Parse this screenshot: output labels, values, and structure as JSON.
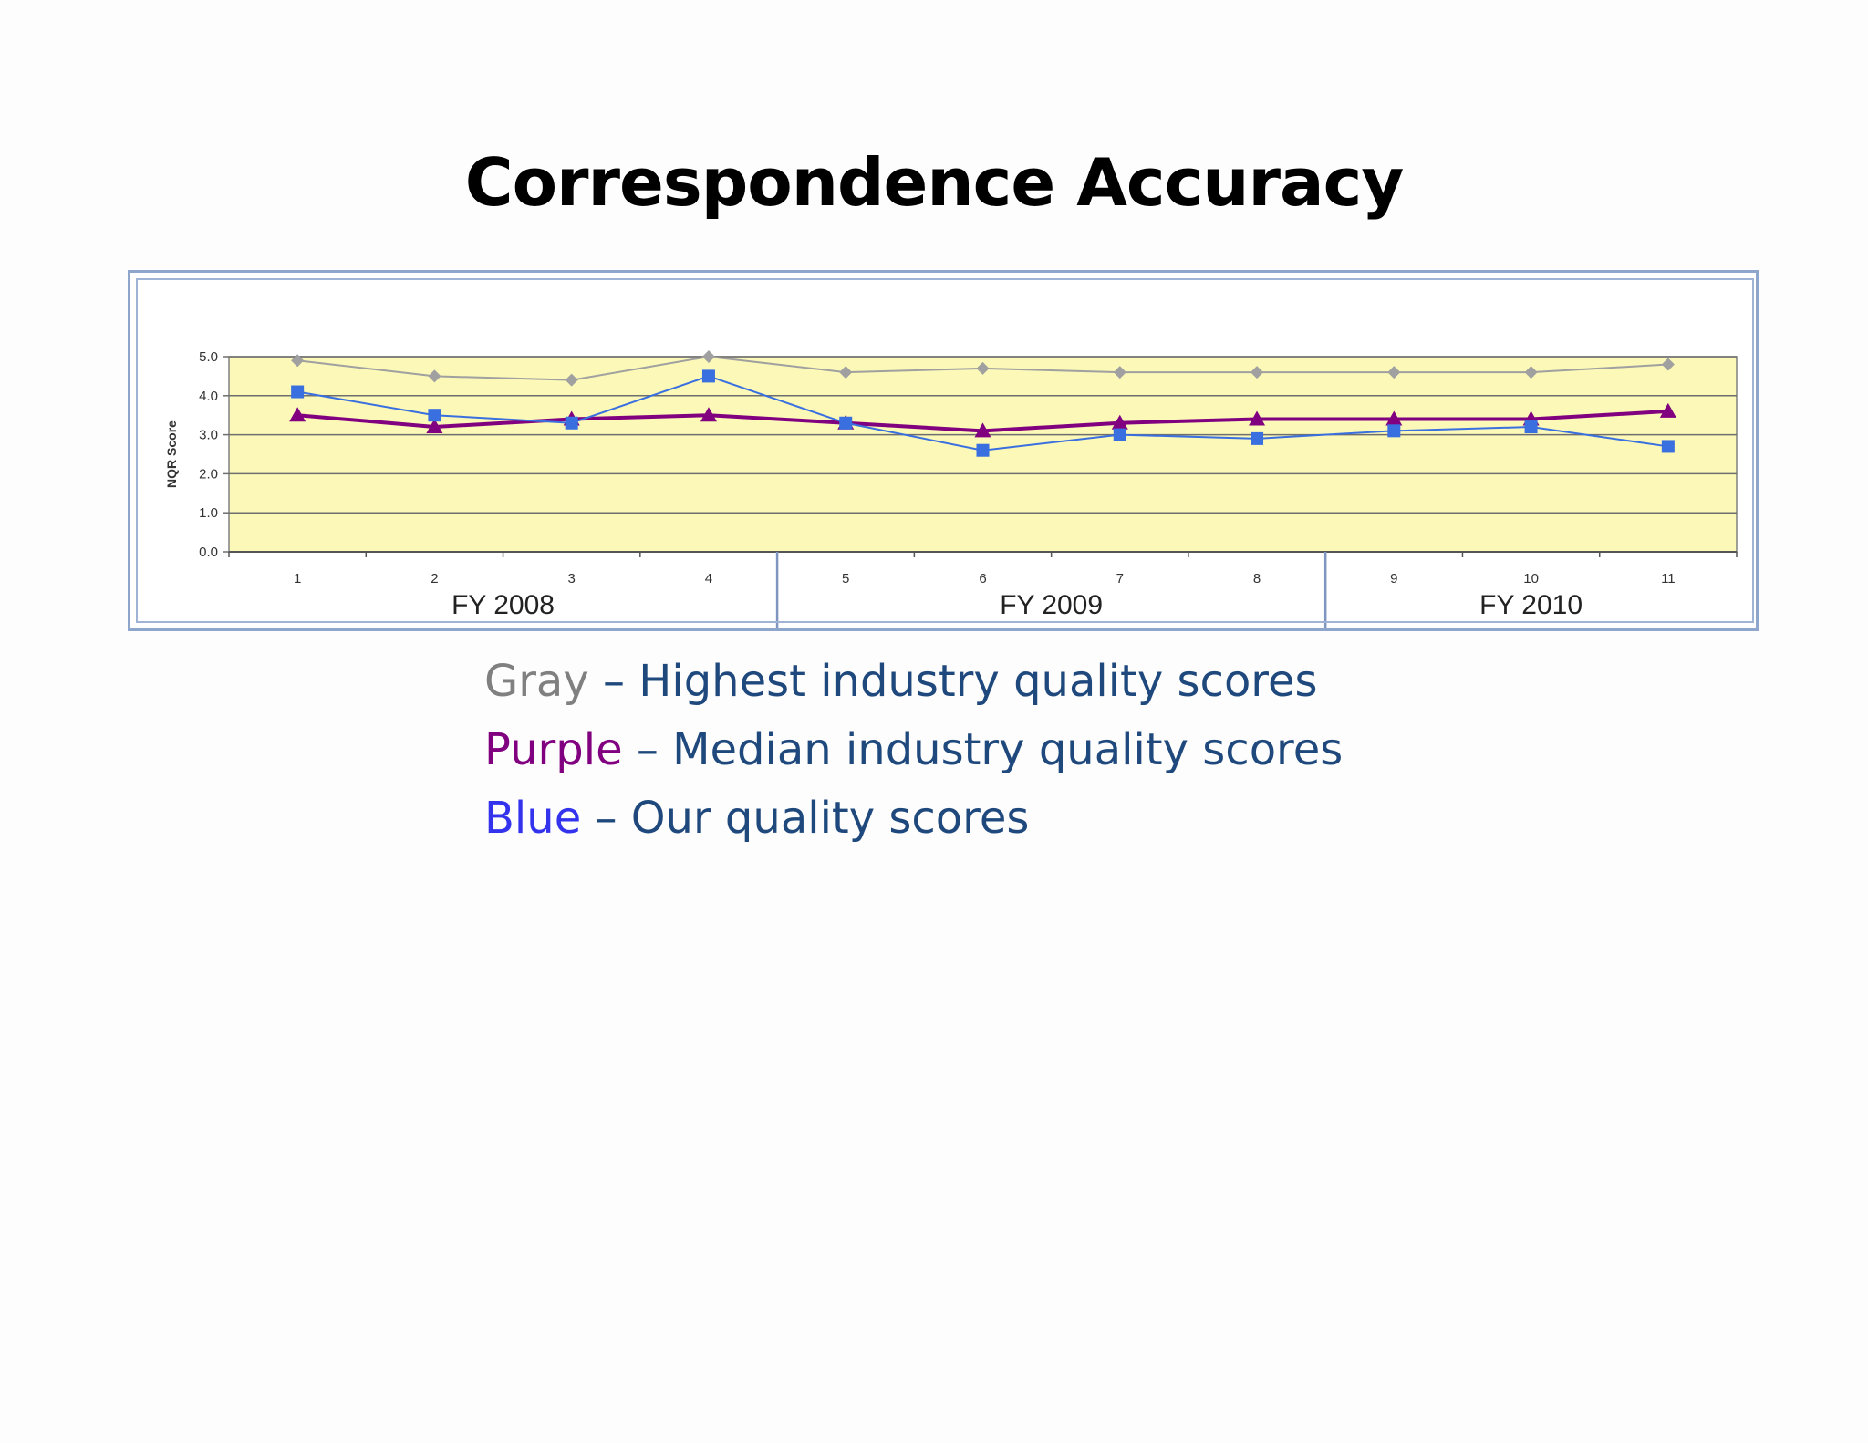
{
  "slide": {
    "title": "Correspondence Accuracy"
  },
  "legend": [
    {
      "color_word": "Gray",
      "color": "#808080",
      "separator": " – ",
      "text": "Highest industry quality scores"
    },
    {
      "color_word": "Purple",
      "color": "#800080",
      "separator": " – ",
      "text": "Median industry quality scores"
    },
    {
      "color_word": "Blue",
      "color": "#3333ee",
      "separator": " – ",
      "text": "Our quality scores"
    }
  ],
  "chart_data": {
    "type": "line",
    "ylabel": "NQR Score",
    "ylim": [
      0,
      5
    ],
    "yticks": [
      "0.0",
      "1.0",
      "2.0",
      "3.0",
      "4.0",
      "5.0"
    ],
    "categories": [
      "1",
      "2",
      "3",
      "4",
      "5",
      "6",
      "7",
      "8",
      "9",
      "10",
      "11"
    ],
    "grid": true,
    "plot_background": "#fbf8b8",
    "groups": [
      {
        "label": "FY 2008",
        "categories": [
          "1",
          "2",
          "3",
          "4"
        ]
      },
      {
        "label": "FY 2009",
        "categories": [
          "5",
          "6",
          "7",
          "8"
        ]
      },
      {
        "label": "FY 2010",
        "categories": [
          "9",
          "10",
          "11"
        ]
      }
    ],
    "series": [
      {
        "color": "#a0a0a0",
        "marker": "diamond",
        "values": [
          4.9,
          4.5,
          4.4,
          5.0,
          4.6,
          4.7,
          4.6,
          4.6,
          4.6,
          4.6,
          4.8
        ]
      },
      {
        "color": "#800080",
        "marker": "triangle",
        "values": [
          3.5,
          3.2,
          3.4,
          3.5,
          3.3,
          3.1,
          3.3,
          3.4,
          3.4,
          3.4,
          3.6
        ]
      },
      {
        "color": "#3a6fe0",
        "marker": "square",
        "values": [
          4.1,
          3.5,
          3.3,
          4.5,
          3.3,
          2.6,
          3.0,
          2.9,
          3.1,
          3.2,
          2.7
        ]
      }
    ]
  }
}
